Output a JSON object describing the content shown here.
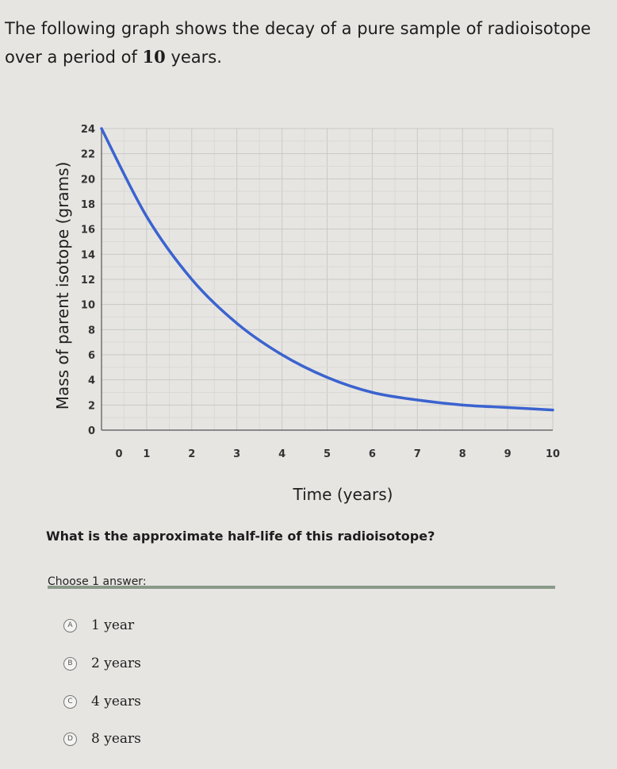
{
  "intro": {
    "part1": "The following graph shows the decay of a pure sample of radioisotope over a period of ",
    "number": "10",
    "part2": " years."
  },
  "chart_data": {
    "type": "line",
    "xlabel": "Time (years)",
    "ylabel": "Mass of parent isotope (grams)",
    "xlim": [
      0,
      10
    ],
    "ylim": [
      0,
      24
    ],
    "x_ticks": [
      "0",
      "1",
      "2",
      "3",
      "4",
      "5",
      "6",
      "7",
      "8",
      "9",
      "10"
    ],
    "y_ticks": [
      "0",
      "2",
      "4",
      "6",
      "8",
      "10",
      "12",
      "14",
      "16",
      "18",
      "20",
      "22",
      "24"
    ],
    "grid": true,
    "line_color": "#3b63cf",
    "series": [
      {
        "x": [
          0,
          1,
          2,
          3,
          4,
          5,
          6,
          7,
          8,
          9,
          10
        ],
        "y": [
          24,
          17,
          12,
          8.5,
          6,
          4.2,
          3,
          2.4,
          2.0,
          1.8,
          1.6
        ]
      }
    ]
  },
  "question": "What is the approximate half-life of this radioisotope?",
  "choose_label": "Choose 1 answer:",
  "options": [
    {
      "letter": "A",
      "label": "1 year"
    },
    {
      "letter": "B",
      "label": "2 years"
    },
    {
      "letter": "C",
      "label": "4 years"
    },
    {
      "letter": "D",
      "label": "8 years"
    }
  ]
}
